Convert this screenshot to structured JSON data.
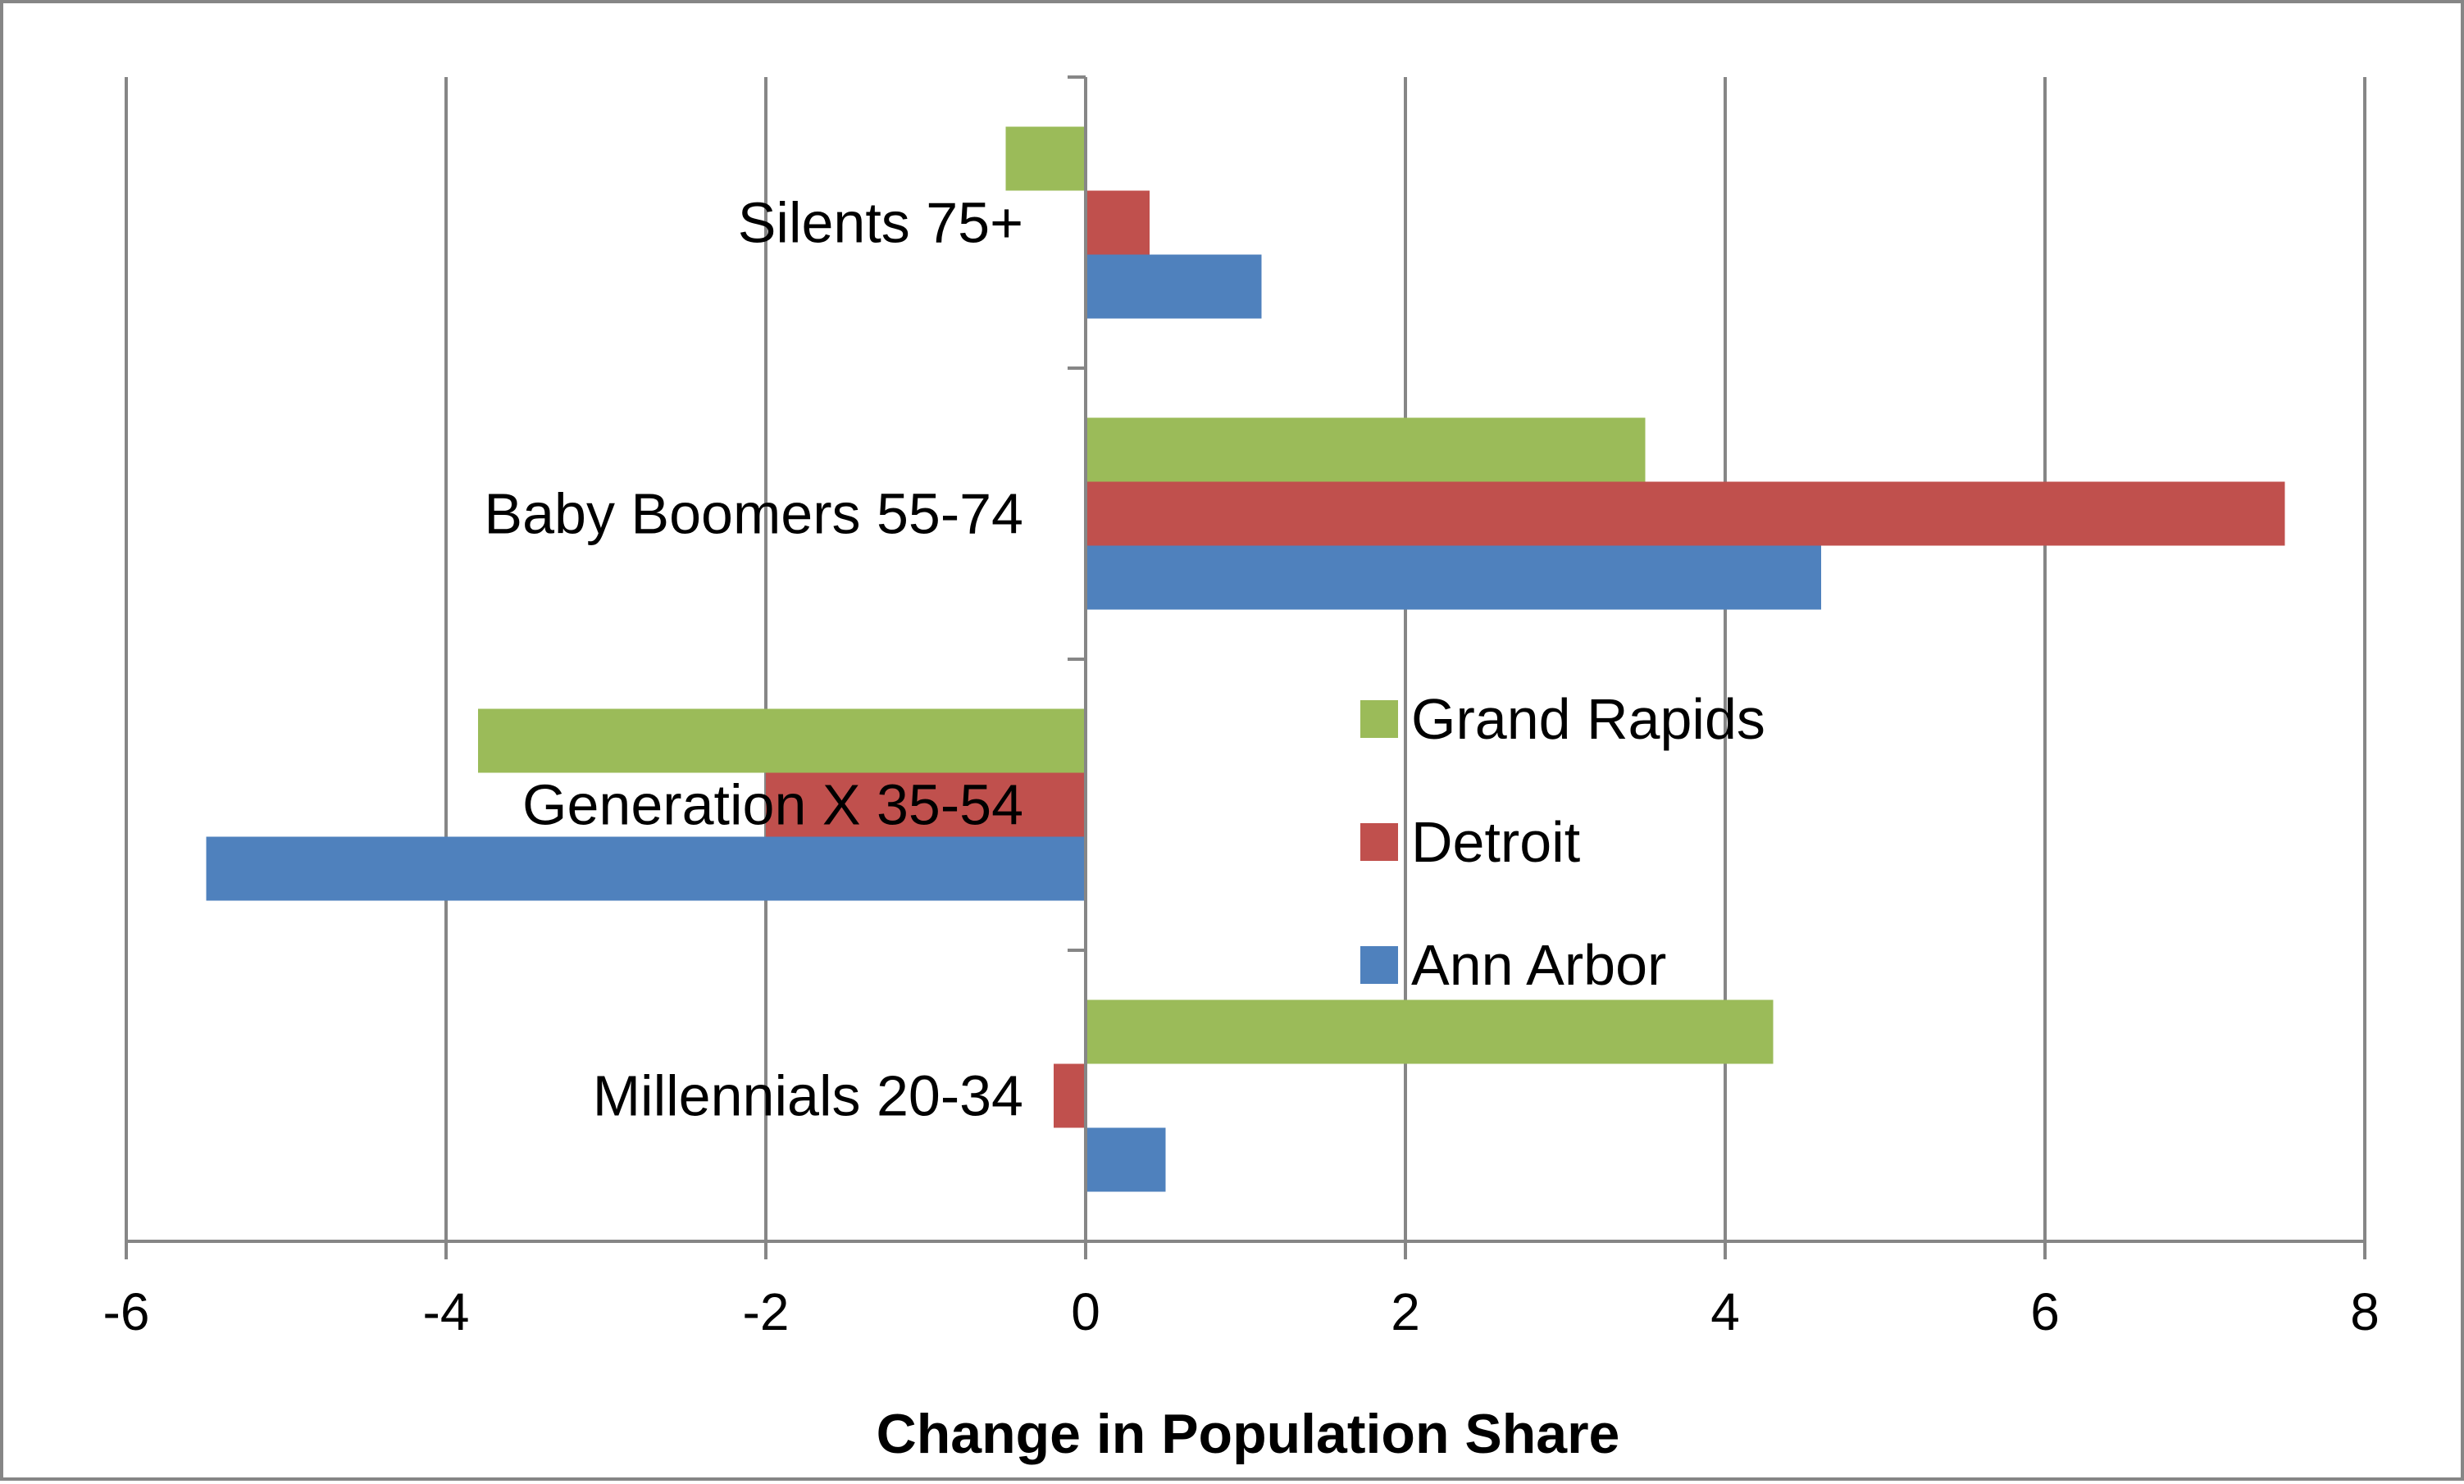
{
  "chart_data": {
    "type": "bar",
    "orientation": "horizontal",
    "title": "",
    "xlabel": "Change in Population Share",
    "ylabel": "",
    "xlim": [
      -6,
      8
    ],
    "x_ticks": [
      -6,
      -4,
      -2,
      0,
      2,
      4,
      6,
      8
    ],
    "x_tick_labels": [
      "-6",
      "-4",
      "-2",
      "0",
      "2",
      "4",
      "6",
      "8"
    ],
    "grid": true,
    "legend_position": "center-right",
    "categories": [
      "Silents 75+",
      "Baby Boomers 55-74",
      "Generation X 35-54",
      "Millennials 20-34"
    ],
    "series": [
      {
        "name": "Grand Rapids",
        "color": "#9BBB59",
        "values": [
          -0.5,
          3.5,
          -3.8,
          4.3
        ]
      },
      {
        "name": "Detroit",
        "color": "#C0504D",
        "values": [
          0.4,
          7.5,
          -2.0,
          -0.2
        ]
      },
      {
        "name": "Ann Arbor",
        "color": "#4F81BD",
        "values": [
          1.1,
          4.6,
          -5.5,
          0.5
        ]
      }
    ]
  }
}
